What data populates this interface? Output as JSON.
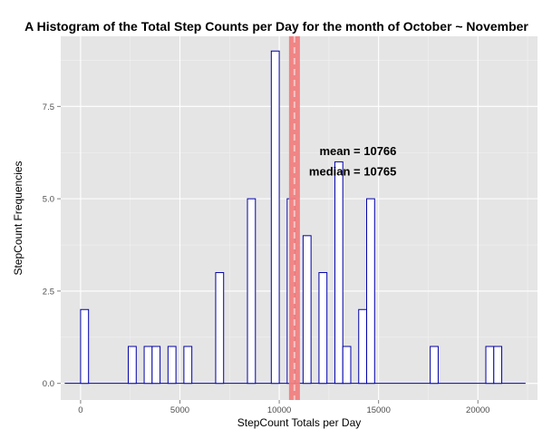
{
  "chart_data": {
    "type": "bar",
    "title": "A Histogram of the Total Step Counts per Day for the month of October ~ November",
    "xlabel": "StepCount Totals per Day",
    "ylabel": "StepCount Frequencies",
    "xlim": [
      -1000,
      23000
    ],
    "ylim": [
      -0.45,
      9.4
    ],
    "x_ticks": [
      0,
      5000,
      10000,
      15000,
      20000
    ],
    "x_tick_labels": [
      "0",
      "5000",
      "10000",
      "15000",
      "20000"
    ],
    "y_ticks": [
      0,
      2.5,
      5,
      7.5
    ],
    "y_tick_labels": [
      "0.0",
      "2.5",
      "5.0",
      "7.5"
    ],
    "bin_width": 400,
    "bins": [
      {
        "x0": 0,
        "x1": 400,
        "count": 2
      },
      {
        "x0": 2400,
        "x1": 2800,
        "count": 1
      },
      {
        "x0": 3200,
        "x1": 3600,
        "count": 1
      },
      {
        "x0": 3600,
        "x1": 4000,
        "count": 1
      },
      {
        "x0": 4400,
        "x1": 4800,
        "count": 1
      },
      {
        "x0": 5200,
        "x1": 5600,
        "count": 1
      },
      {
        "x0": 6800,
        "x1": 7200,
        "count": 3
      },
      {
        "x0": 8400,
        "x1": 8800,
        "count": 5
      },
      {
        "x0": 9600,
        "x1": 10000,
        "count": 9
      },
      {
        "x0": 10400,
        "x1": 10800,
        "count": 5
      },
      {
        "x0": 11200,
        "x1": 11600,
        "count": 4
      },
      {
        "x0": 12000,
        "x1": 12400,
        "count": 3
      },
      {
        "x0": 12800,
        "x1": 13200,
        "count": 6
      },
      {
        "x0": 13200,
        "x1": 13600,
        "count": 1
      },
      {
        "x0": 14000,
        "x1": 14400,
        "count": 2
      },
      {
        "x0": 14400,
        "x1": 14800,
        "count": 5
      },
      {
        "x0": 17600,
        "x1": 18000,
        "count": 1
      },
      {
        "x0": 20400,
        "x1": 20800,
        "count": 1
      },
      {
        "x0": 20800,
        "x1": 21200,
        "count": 1
      }
    ],
    "baseline_range": [
      -800,
      22400
    ],
    "mean": 10766,
    "median": 10765,
    "mean_label": "mean =  10766",
    "median_label": "median =   10765",
    "grid": true,
    "colors": {
      "panel_background": "#e5e5e5",
      "grid_major": "#ffffff",
      "grid_minor": "#f2f2f2",
      "bar_fill": "#ffffff",
      "bar_outline": "#0000aa",
      "mean_line": "#f07f7f",
      "median_line": "#f7c4c4"
    }
  }
}
